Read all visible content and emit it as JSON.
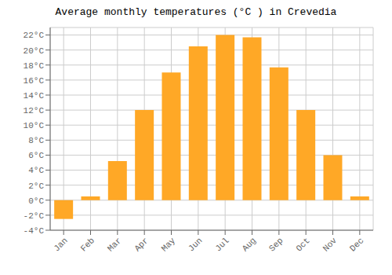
{
  "chart_data": {
    "type": "bar",
    "title": "Average monthly temperatures (°C ) in Crevedia",
    "categories": [
      "Jan",
      "Feb",
      "Mar",
      "Apr",
      "May",
      "Jun",
      "Jul",
      "Aug",
      "Sep",
      "Oct",
      "Nov",
      "Dec"
    ],
    "values": [
      -2.5,
      0.5,
      5.2,
      12.0,
      17.0,
      20.5,
      22.0,
      21.7,
      17.7,
      12.0,
      6.0,
      0.5
    ],
    "color": "#FFA826",
    "ylim": [
      -4,
      23
    ],
    "yticks": [
      {
        "value": -4,
        "label": "-4°C"
      },
      {
        "value": -2,
        "label": "-2°C"
      },
      {
        "value": 0,
        "label": "0°C"
      },
      {
        "value": 2,
        "label": "2°C"
      },
      {
        "value": 4,
        "label": "4°C"
      },
      {
        "value": 6,
        "label": "6°C"
      },
      {
        "value": 8,
        "label": "8°C"
      },
      {
        "value": 10,
        "label": "10°C"
      },
      {
        "value": 12,
        "label": "12°C"
      },
      {
        "value": 14,
        "label": "14°C"
      },
      {
        "value": 16,
        "label": "16°C"
      },
      {
        "value": 18,
        "label": "18°C"
      },
      {
        "value": 20,
        "label": "20°C"
      },
      {
        "value": 22,
        "label": "22°C"
      }
    ],
    "grid": true
  }
}
